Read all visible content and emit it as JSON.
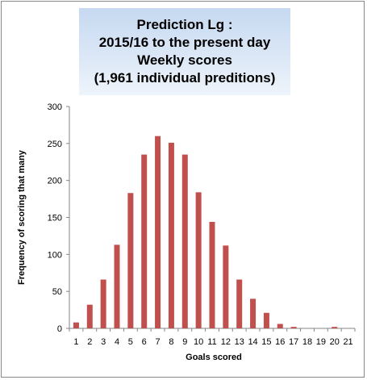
{
  "chart_data": {
    "type": "bar",
    "title_lines": [
      "Prediction Lg :",
      "2015/16 to the present day",
      "Weekly scores",
      "(1,961 individual  preditions)"
    ],
    "xlabel": "Goals scored",
    "ylabel": "Frequency of scoring  that many",
    "categories": [
      "1",
      "2",
      "3",
      "4",
      "5",
      "6",
      "7",
      "8",
      "9",
      "10",
      "11",
      "12",
      "13",
      "14",
      "15",
      "16",
      "17",
      "18",
      "19",
      "20",
      "21"
    ],
    "values": [
      8,
      32,
      66,
      113,
      183,
      235,
      260,
      251,
      235,
      184,
      144,
      112,
      66,
      40,
      21,
      6,
      2,
      0,
      0,
      2,
      0
    ],
    "ylim": [
      0,
      300
    ],
    "yticks": [
      0,
      50,
      100,
      150,
      200,
      250,
      300
    ],
    "grid": false,
    "legend": "none",
    "bar_color": "#c0504d"
  }
}
